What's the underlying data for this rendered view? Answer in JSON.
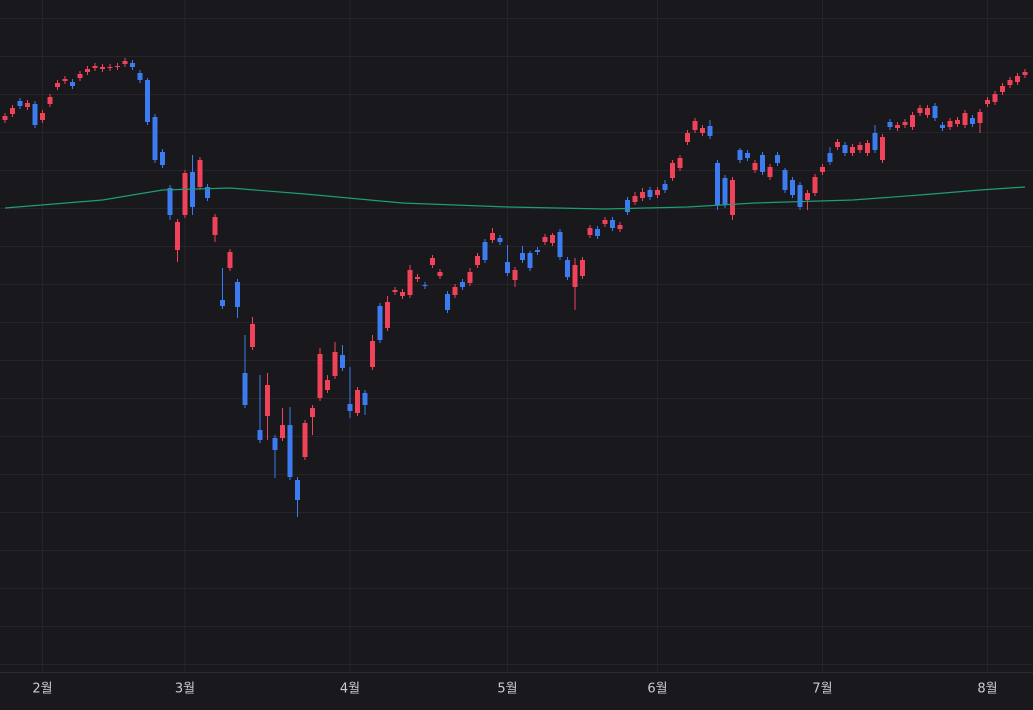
{
  "chart_data": {
    "type": "candlestick",
    "categories": [
      null,
      null,
      null,
      null,
      null,
      "2월",
      null,
      null,
      null,
      null,
      null,
      null,
      null,
      null,
      null,
      null,
      null,
      null,
      null,
      null,
      null,
      null,
      null,
      null,
      "3월",
      null,
      null,
      null,
      null,
      null,
      null,
      null,
      null,
      null,
      null,
      null,
      null,
      null,
      null,
      null,
      null,
      null,
      null,
      null,
      null,
      null,
      "4월",
      null,
      null,
      null,
      null,
      null,
      null,
      null,
      null,
      null,
      null,
      null,
      null,
      null,
      null,
      null,
      null,
      null,
      null,
      null,
      null,
      "5월",
      null,
      null,
      null,
      null,
      null,
      null,
      null,
      null,
      null,
      null,
      null,
      null,
      null,
      null,
      null,
      null,
      null,
      null,
      null,
      "6월",
      null,
      null,
      null,
      null,
      null,
      null,
      null,
      null,
      null,
      null,
      null,
      null,
      null,
      null,
      null,
      null,
      null,
      null,
      null,
      null,
      null,
      "7월",
      null,
      null,
      null,
      null,
      null,
      null,
      null,
      null,
      null,
      null,
      null,
      null,
      null,
      null,
      null,
      null,
      null,
      null,
      null,
      null,
      null,
      "8월",
      null,
      null,
      null,
      null
    ],
    "candles": [
      [
        580,
        587,
        577,
        584
      ],
      [
        586,
        595,
        583,
        592
      ],
      [
        599,
        602,
        591,
        594
      ],
      [
        593,
        600,
        590,
        597
      ],
      [
        596,
        599,
        572,
        575
      ],
      [
        580,
        590,
        577,
        587
      ],
      [
        596,
        606,
        593,
        603
      ],
      [
        613,
        620,
        610,
        617
      ],
      [
        619,
        624,
        616,
        621
      ],
      [
        618,
        621,
        611,
        614
      ],
      [
        622,
        629,
        619,
        626
      ],
      [
        628,
        634,
        625,
        631
      ],
      [
        632,
        637,
        629,
        634
      ],
      [
        631,
        636,
        628,
        633
      ],
      [
        632,
        636,
        629,
        633
      ],
      [
        633,
        637,
        630,
        634
      ],
      [
        636,
        642,
        633,
        639
      ],
      [
        637,
        640,
        630,
        633
      ],
      [
        627,
        630,
        617,
        620
      ],
      [
        620,
        622,
        575,
        578
      ],
      [
        583,
        586,
        537,
        540
      ],
      [
        548,
        551,
        532,
        535
      ],
      [
        512,
        515,
        480,
        485
      ],
      [
        450,
        481,
        438,
        478
      ],
      [
        485,
        530,
        482,
        527
      ],
      [
        528,
        545,
        485,
        493
      ],
      [
        513,
        543,
        510,
        540
      ],
      [
        513,
        516,
        499,
        502
      ],
      [
        465,
        486,
        458,
        483
      ],
      [
        400,
        432,
        391,
        394
      ],
      [
        432,
        451,
        429,
        448
      ],
      [
        418,
        421,
        382,
        393
      ],
      [
        327,
        365,
        292,
        295
      ],
      [
        353,
        383,
        350,
        376
      ],
      [
        270,
        325,
        257,
        260
      ],
      [
        284,
        327,
        260,
        315
      ],
      [
        262,
        265,
        222,
        250
      ],
      [
        262,
        292,
        259,
        275
      ],
      [
        275,
        293,
        220,
        223
      ],
      [
        220,
        223,
        183,
        200
      ],
      [
        243,
        280,
        240,
        277
      ],
      [
        283,
        295,
        265,
        292
      ],
      [
        302,
        352,
        299,
        346
      ],
      [
        310,
        325,
        307,
        320
      ],
      [
        324,
        358,
        321,
        348
      ],
      [
        345,
        355,
        329,
        332
      ],
      [
        296,
        333,
        282,
        289
      ],
      [
        287,
        313,
        284,
        310
      ],
      [
        307,
        310,
        285,
        295
      ],
      [
        333,
        365,
        330,
        359
      ],
      [
        394,
        397,
        357,
        360
      ],
      [
        372,
        404,
        369,
        398
      ],
      [
        408,
        413,
        405,
        410
      ],
      [
        404,
        411,
        401,
        408
      ],
      [
        405,
        435,
        402,
        430
      ],
      [
        421,
        426,
        418,
        423
      ],
      [
        415,
        418,
        411,
        414
      ],
      [
        435,
        445,
        432,
        442
      ],
      [
        424,
        431,
        421,
        428
      ],
      [
        406,
        409,
        387,
        390
      ],
      [
        405,
        416,
        402,
        413
      ],
      [
        418,
        421,
        410,
        413
      ],
      [
        417,
        432,
        414,
        428
      ],
      [
        435,
        447,
        432,
        444
      ],
      [
        458,
        461,
        437,
        440
      ],
      [
        460,
        472,
        457,
        467
      ],
      [
        462,
        465,
        455,
        458
      ],
      [
        438,
        455,
        424,
        427
      ],
      [
        420,
        433,
        413,
        430
      ],
      [
        447,
        454,
        437,
        440
      ],
      [
        447,
        449,
        429,
        432
      ],
      [
        450,
        453,
        445,
        448
      ],
      [
        458,
        466,
        455,
        463
      ],
      [
        457,
        467,
        454,
        465
      ],
      [
        468,
        471,
        440,
        443
      ],
      [
        440,
        443,
        420,
        423
      ],
      [
        413,
        442,
        390,
        435
      ],
      [
        424,
        443,
        421,
        440
      ],
      [
        465,
        475,
        462,
        472
      ],
      [
        471,
        474,
        461,
        464
      ],
      [
        476,
        483,
        473,
        480
      ],
      [
        480,
        483,
        469,
        472
      ],
      [
        471,
        478,
        468,
        475
      ],
      [
        500,
        503,
        485,
        488
      ],
      [
        498,
        508,
        495,
        504
      ],
      [
        502,
        512,
        499,
        508
      ],
      [
        510,
        513,
        500,
        503
      ],
      [
        505,
        513,
        502,
        510
      ],
      [
        516,
        520,
        507,
        510
      ],
      [
        522,
        540,
        519,
        537
      ],
      [
        532,
        545,
        529,
        542
      ],
      [
        558,
        570,
        555,
        567
      ],
      [
        570,
        582,
        567,
        579
      ],
      [
        567,
        575,
        564,
        572
      ],
      [
        574,
        580,
        561,
        564
      ],
      [
        537,
        540,
        490,
        495
      ],
      [
        522,
        525,
        492,
        495
      ],
      [
        485,
        523,
        480,
        520
      ],
      [
        550,
        552,
        537,
        540
      ],
      [
        547,
        550,
        539,
        542
      ],
      [
        530,
        540,
        527,
        537
      ],
      [
        545,
        548,
        525,
        528
      ],
      [
        523,
        536,
        520,
        533
      ],
      [
        545,
        548,
        534,
        537
      ],
      [
        530,
        532,
        507,
        510
      ],
      [
        520,
        523,
        502,
        505
      ],
      [
        515,
        518,
        490,
        493
      ],
      [
        500,
        510,
        490,
        507
      ],
      [
        507,
        526,
        504,
        523
      ],
      [
        528,
        536,
        525,
        533
      ],
      [
        547,
        553,
        535,
        538
      ],
      [
        553,
        561,
        550,
        558
      ],
      [
        555,
        558,
        544,
        547
      ],
      [
        547,
        556,
        544,
        553
      ],
      [
        550,
        558,
        547,
        555
      ],
      [
        547,
        560,
        544,
        557
      ],
      [
        567,
        575,
        547,
        550
      ],
      [
        540,
        566,
        537,
        563
      ],
      [
        578,
        581,
        570,
        573
      ],
      [
        572,
        578,
        569,
        575
      ],
      [
        575,
        581,
        572,
        578
      ],
      [
        573,
        588,
        570,
        585
      ],
      [
        587,
        595,
        584,
        592
      ],
      [
        585,
        595,
        582,
        592
      ],
      [
        594,
        597,
        579,
        582
      ],
      [
        575,
        578,
        569,
        572
      ],
      [
        573,
        582,
        570,
        579
      ],
      [
        576,
        583,
        573,
        580
      ],
      [
        575,
        590,
        572,
        587
      ],
      [
        582,
        585,
        573,
        576
      ],
      [
        577,
        591,
        567,
        588
      ],
      [
        596,
        603,
        593,
        600
      ],
      [
        598,
        609,
        595,
        606
      ],
      [
        608,
        617,
        605,
        614
      ],
      [
        615,
        623,
        612,
        620
      ],
      [
        618,
        627,
        615,
        624
      ],
      [
        625,
        631,
        622,
        628
      ]
    ],
    "moving_average": {
      "x": [
        0,
        13,
        21,
        30,
        40,
        53,
        67,
        80,
        91,
        100,
        113,
        122,
        130,
        136
      ],
      "values": [
        492,
        500,
        510,
        512,
        506,
        497,
        493,
        491,
        493,
        497,
        500,
        505,
        510,
        513
      ],
      "color": "#1f9e6e"
    },
    "up_color": "#f0435a",
    "down_color": "#3d7cf0",
    "ylim": [
      28,
      700
    ],
    "grid": true
  }
}
